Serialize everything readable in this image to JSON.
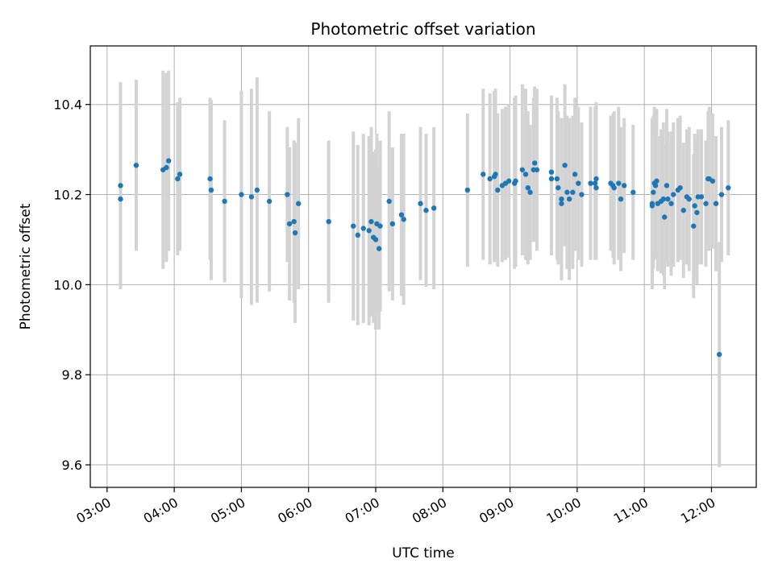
{
  "chart_data": {
    "type": "scatter",
    "title": "Photometric offset variation",
    "xlabel": "UTC time",
    "ylabel": "Photometric offset",
    "xlim": [
      "02:45",
      "12:40"
    ],
    "ylim": [
      9.55,
      10.53
    ],
    "x_ticks": [
      "03:00",
      "04:00",
      "05:00",
      "06:00",
      "07:00",
      "08:00",
      "09:00",
      "10:00",
      "11:00",
      "12:00"
    ],
    "y_ticks": [
      9.6,
      9.8,
      10.0,
      10.2,
      10.4
    ],
    "y_tick_labels": [
      "9.6",
      "9.8",
      "10.0",
      "10.2",
      "10.4"
    ],
    "grid": true,
    "colors": {
      "marker": "#1f77b4",
      "errorbar": "#d3d3d3",
      "grid": "#b0b0b0"
    },
    "series": [
      {
        "x": [
          "03:12",
          "03:12",
          "03:26",
          "03:50",
          "03:53",
          "03:55",
          "04:03",
          "04:05",
          "04:32",
          "04:33",
          "04:45",
          "05:00",
          "05:09",
          "05:14",
          "05:25",
          "05:41",
          "05:43",
          "05:47",
          "05:48",
          "05:51",
          "06:18",
          "06:40",
          "06:44",
          "06:49",
          "06:54",
          "06:56",
          "06:58",
          "07:00",
          "07:01",
          "07:03",
          "07:04",
          "07:12",
          "07:15",
          "07:23",
          "07:25",
          "07:40",
          "07:45",
          "07:52",
          "08:22",
          "08:36",
          "08:42",
          "08:46",
          "08:47",
          "08:49",
          "08:53",
          "08:56",
          "08:59",
          "09:04",
          "09:05",
          "09:11",
          "09:14",
          "09:16",
          "09:18",
          "09:21",
          "09:22",
          "09:24",
          "09:37",
          "09:37",
          "09:42",
          "09:43",
          "09:46",
          "09:46",
          "09:49",
          "09:51",
          "09:53",
          "09:56",
          "09:58",
          "10:01",
          "10:04",
          "10:12",
          "10:16",
          "10:17",
          "10:17",
          "10:30",
          "10:32",
          "10:33",
          "10:37",
          "10:39",
          "10:42",
          "10:50",
          "11:07",
          "11:07",
          "11:08",
          "11:09",
          "11:10",
          "11:11",
          "11:12",
          "11:15",
          "11:17",
          "11:18",
          "11:20",
          "11:21",
          "11:24",
          "11:26",
          "11:30",
          "11:32",
          "11:35",
          "11:38",
          "11:40",
          "11:44",
          "11:45",
          "11:47",
          "11:48",
          "11:51",
          "11:55",
          "11:57",
          "11:58",
          "12:01",
          "12:04",
          "12:07",
          "12:09",
          "12:15"
        ],
        "y": [
          10.22,
          10.19,
          10.265,
          10.255,
          10.26,
          10.275,
          10.235,
          10.245,
          10.235,
          10.21,
          10.185,
          10.2,
          10.195,
          10.21,
          10.185,
          10.2,
          10.135,
          10.14,
          10.115,
          10.18,
          10.14,
          10.13,
          10.11,
          10.125,
          10.12,
          10.14,
          10.105,
          10.1,
          10.135,
          10.08,
          10.13,
          10.185,
          10.135,
          10.155,
          10.145,
          10.18,
          10.165,
          10.17,
          10.21,
          10.245,
          10.235,
          10.24,
          10.245,
          10.21,
          10.22,
          10.225,
          10.23,
          10.225,
          10.23,
          10.255,
          10.245,
          10.215,
          10.205,
          10.255,
          10.27,
          10.255,
          10.235,
          10.25,
          10.235,
          10.215,
          10.18,
          10.19,
          10.265,
          10.205,
          10.19,
          10.205,
          10.245,
          10.225,
          10.2,
          10.225,
          10.225,
          10.235,
          10.215,
          10.225,
          10.22,
          10.215,
          10.225,
          10.19,
          10.22,
          10.205,
          10.18,
          10.175,
          10.205,
          10.225,
          10.22,
          10.23,
          10.18,
          10.185,
          10.19,
          10.15,
          10.22,
          10.19,
          10.18,
          10.2,
          10.21,
          10.215,
          10.165,
          10.195,
          10.19,
          10.13,
          10.175,
          10.16,
          10.195,
          10.195,
          10.18,
          10.235,
          10.235,
          10.23,
          10.18,
          9.845,
          10.2,
          10.215
        ],
        "yerr": [
          0.23,
          0.2,
          0.19,
          0.22,
          0.21,
          0.2,
          0.17,
          0.17,
          0.18,
          0.2,
          0.18,
          0.23,
          0.24,
          0.25,
          0.2,
          0.15,
          0.17,
          0.18,
          0.2,
          0.19,
          0.18,
          0.21,
          0.2,
          0.21,
          0.21,
          0.21,
          0.19,
          0.2,
          0.2,
          0.18,
          0.19,
          0.2,
          0.17,
          0.18,
          0.19,
          0.17,
          0.17,
          0.18,
          0.17,
          0.19,
          0.19,
          0.19,
          0.19,
          0.17,
          0.17,
          0.17,
          0.17,
          0.19,
          0.19,
          0.19,
          0.19,
          0.17,
          0.15,
          0.16,
          0.17,
          0.18,
          0.17,
          0.17,
          0.18,
          0.17,
          0.17,
          0.18,
          0.18,
          0.17,
          0.18,
          0.17,
          0.17,
          0.17,
          0.16,
          0.17,
          0.17,
          0.17,
          0.16,
          0.15,
          0.16,
          0.17,
          0.17,
          0.16,
          0.15,
          0.15,
          0.19,
          0.18,
          0.17,
          0.17,
          0.16,
          0.16,
          0.15,
          0.16,
          0.17,
          0.16,
          0.17,
          0.15,
          0.16,
          0.16,
          0.16,
          0.16,
          0.15,
          0.15,
          0.16,
          0.16,
          0.16,
          0.16,
          0.15,
          0.15,
          0.14,
          0.15,
          0.16,
          0.15,
          0.15,
          0.25,
          0.15,
          0.15
        ]
      }
    ]
  }
}
